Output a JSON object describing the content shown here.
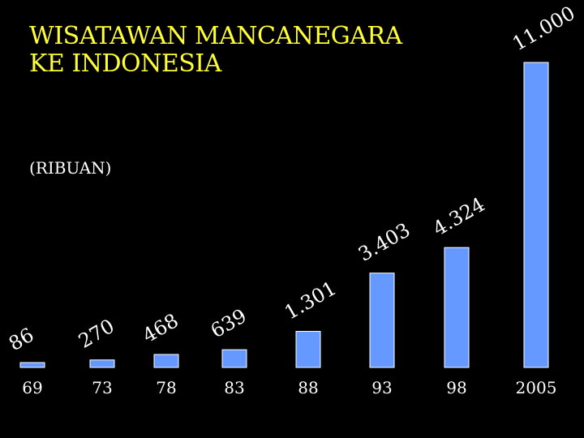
{
  "chart_data": {
    "type": "bar",
    "title_line1": "WISATAWAN MANCANEGARA",
    "title_line2": "KE INDONESIA",
    "unit_label": "(RIBUAN)",
    "categories": [
      "69",
      "73",
      "78",
      "83",
      "88",
      "93",
      "98",
      "2005"
    ],
    "values": [
      86,
      270,
      468,
      639,
      1301,
      3403,
      4324,
      11000
    ],
    "data_labels": [
      "86",
      "270",
      "468",
      "639",
      "1.301",
      "3.403",
      "4.324",
      "11.000"
    ],
    "bar_color": "#6699FF",
    "title_color": "#FFFF33",
    "label_color": "#FFFFFF",
    "background": "#000000",
    "grid": false,
    "legend": "none"
  }
}
